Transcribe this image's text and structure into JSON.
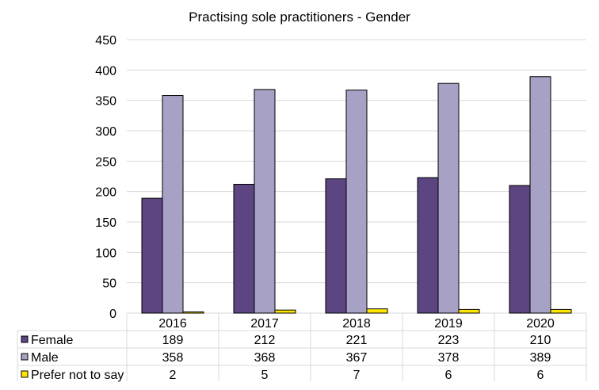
{
  "chart_data": {
    "type": "bar",
    "title": "Practising sole practitioners - Gender",
    "categories": [
      "2016",
      "2017",
      "2018",
      "2019",
      "2020"
    ],
    "series": [
      {
        "name": "Female",
        "color": "#5c4580",
        "values": [
          189,
          212,
          221,
          223,
          210
        ]
      },
      {
        "name": "Male",
        "color": "#a7a1c6",
        "values": [
          358,
          368,
          367,
          378,
          389
        ]
      },
      {
        "name": "Prefer not to say",
        "color": "#ffe600",
        "values": [
          2,
          5,
          7,
          6,
          6
        ]
      }
    ],
    "yticks": [
      "0",
      "50",
      "100",
      "150",
      "200",
      "250",
      "300",
      "350",
      "400",
      "450"
    ],
    "ylim": [
      0,
      450
    ],
    "grid": true,
    "legend": "data table below chart",
    "data_table": [
      {
        "series": "Female",
        "cells": [
          "189",
          "212",
          "221",
          "223",
          "210"
        ]
      },
      {
        "series": "Male",
        "cells": [
          "358",
          "368",
          "367",
          "378",
          "389"
        ]
      },
      {
        "series": "Prefer not to say",
        "cells": [
          "2",
          "5",
          "7",
          "6",
          "6"
        ]
      }
    ]
  }
}
